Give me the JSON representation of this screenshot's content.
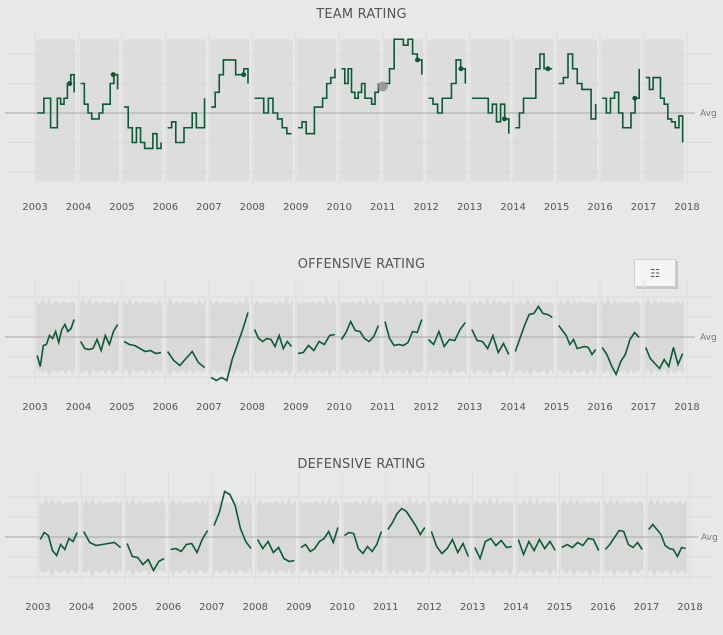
{
  "colors": {
    "line": "#0b5a35",
    "band": "#d9d9d9",
    "spaghetti": "#d4d4d4",
    "grid": "#dcdcdc",
    "avg_line": "#a9a9a9",
    "highlight_dot": "#8a8a8a"
  },
  "view_data_button": {
    "icon": "table-icon",
    "glyph": "☷"
  },
  "chart_data": [
    {
      "type": "line",
      "title": "TEAM RATING",
      "reference_line": "Avg",
      "ylim": [
        -2.5,
        2.6
      ],
      "grid": true,
      "xticks": [
        "2003",
        "2004",
        "2005",
        "2006",
        "2007",
        "2008",
        "2009",
        "2010",
        "2011",
        "2012",
        "2013",
        "2014",
        "2015",
        "2016",
        "2017",
        "2018"
      ],
      "background": "other teams as gray lines",
      "seasons": [
        {
          "year": 2003,
          "values": [
            0,
            0,
            0.5,
            0.5,
            -0.5,
            -0.5,
            0.5,
            0.3,
            0.5,
            1,
            1.3,
            0.7
          ]
        },
        {
          "year": 2004,
          "values": [
            1,
            0.3,
            0,
            -0.2,
            -0.2,
            0,
            0.3,
            0.3,
            1,
            1.3,
            0.8
          ]
        },
        {
          "year": 2005,
          "values": [
            0.2,
            -0.5,
            -1,
            -0.5,
            -1,
            -1.2,
            -1.2,
            -0.7,
            -1.2,
            -1
          ]
        },
        {
          "year": 2006,
          "values": [
            -0.5,
            -0.3,
            -1,
            -1,
            -0.5,
            -0.5,
            0,
            -0.5,
            -0.5,
            0.5
          ]
        },
        {
          "year": 2007,
          "values": [
            0.2,
            0.7,
            1.3,
            1.8,
            1.8,
            1.8,
            1.3,
            1.3,
            1.5,
            1
          ]
        },
        {
          "year": 2008,
          "values": [
            0.5,
            0.5,
            0,
            0.5,
            0,
            -0.2,
            -0.5,
            -0.7,
            -0.7
          ]
        },
        {
          "year": 2009,
          "values": [
            -0.5,
            -0.3,
            -0.7,
            -0.7,
            0.2,
            0.2,
            0.5,
            1,
            1.2,
            1.5
          ]
        },
        {
          "year": 2010,
          "values": [
            1.5,
            1,
            1.5,
            0.7,
            0.5,
            0.7,
            1,
            0.5,
            0.5,
            0.3,
            0.7,
            1
          ]
        },
        {
          "year": 2011,
          "values": [
            1,
            1.5,
            2.5,
            2.5,
            2.3,
            2.5,
            2,
            1.8,
            1.3
          ]
        },
        {
          "year": 2012,
          "values": [
            0.5,
            0.3,
            0,
            0.5,
            0.5,
            1,
            1.8,
            1.5,
            1
          ]
        },
        {
          "year": 2013,
          "values": [
            0.5,
            0.5,
            0.5,
            0.5,
            0,
            0.3,
            -0.3,
            0.3,
            -0.2,
            -0.7
          ]
        },
        {
          "year": 2014,
          "values": [
            -0.5,
            0,
            0.5,
            0.5,
            0.5,
            1.5,
            2,
            1.5,
            1.5,
            1.5
          ]
        },
        {
          "year": 2015,
          "values": [
            1,
            1.2,
            2,
            1.5,
            1,
            0.8,
            0.8,
            -0.2,
            0.3
          ]
        },
        {
          "year": 2016,
          "values": [
            0.5,
            0,
            0.5,
            0.7,
            0,
            -0.5,
            -0.5,
            0,
            0.5,
            1.5
          ]
        },
        {
          "year": 2017,
          "values": [
            1.2,
            0.8,
            1.2,
            1.2,
            0.5,
            0.3,
            -0.2,
            -0.3,
            -0.5,
            -0.1,
            -1
          ]
        }
      ],
      "markers": [
        [
          2003.8,
          1
        ],
        [
          2004.8,
          1.3
        ],
        [
          2007.8,
          1.3
        ],
        [
          2011.8,
          1.8
        ],
        [
          2012.8,
          1.5
        ],
        [
          2013.8,
          -0.2
        ],
        [
          2014.8,
          1.5
        ],
        [
          2016.8,
          0.5
        ]
      ],
      "highlight": [
        2011.0,
        0.9
      ]
    },
    {
      "type": "line",
      "title": "OFFENSIVE RATING",
      "reference_line": "Avg",
      "ylim": [
        -2.3,
        2.3
      ],
      "grid": true,
      "xticks": [
        "2003",
        "2004",
        "2005",
        "2006",
        "2007",
        "2008",
        "2009",
        "2010",
        "2011",
        "2012",
        "2013",
        "2014",
        "2015",
        "2016",
        "2017",
        "2018"
      ],
      "band": [
        -2,
        2
      ],
      "seasons": [
        {
          "year": 2003,
          "values": [
            -1,
            -1.4,
            -0.5,
            -0.3,
            0,
            0,
            0.2,
            -0.2,
            0.3,
            0.7,
            0.2,
            0.5,
            0.8
          ]
        },
        {
          "year": 2004,
          "values": [
            -0.3,
            -0.5,
            -0.7,
            -0.5,
            -0.2,
            -0.6,
            0,
            -0.3,
            0.2,
            0.7
          ]
        },
        {
          "year": 2005,
          "values": [
            -0.3,
            -0.3,
            -0.5,
            -0.5,
            -0.8,
            -0.6,
            -0.9,
            -0.7
          ]
        },
        {
          "year": 2006,
          "values": [
            -0.8,
            -1.1,
            -1.5,
            -1,
            -0.8,
            -1.2,
            -1.6
          ]
        },
        {
          "year": 2007,
          "values": [
            -2.1,
            -2.1,
            -2.1,
            -2.1,
            -1.2,
            -0.3,
            0.3,
            1.3
          ]
        },
        {
          "year": 2008,
          "values": [
            0.3,
            0,
            -0.3,
            0,
            -0.2,
            -0.4,
            0,
            -0.5,
            -0.3,
            -0.4
          ]
        },
        {
          "year": 2009,
          "values": [
            -0.9,
            -0.7,
            -0.5,
            -0.6,
            -0.3,
            -0.3,
            0,
            0.2
          ]
        },
        {
          "year": 2010,
          "values": [
            -0.2,
            0.3,
            0.7,
            0.4,
            0.2,
            0,
            -0.3,
            0.1,
            0.5
          ]
        },
        {
          "year": 2011,
          "values": [
            0.7,
            0,
            -0.5,
            -0.3,
            -0.5,
            -0.2,
            0.2,
            0.3,
            0.8
          ]
        },
        {
          "year": 2012,
          "values": [
            -0.2,
            -0.3,
            0.2,
            -0.4,
            -0.2,
            -0.1,
            0.3,
            0.8
          ]
        },
        {
          "year": 2013,
          "values": [
            0.3,
            -0.1,
            -0.3,
            -0.5,
            0,
            -0.7,
            -0.4,
            -0.8
          ]
        },
        {
          "year": 2014,
          "values": [
            -0.8,
            0,
            0.5,
            1.2,
            1.1,
            1.6,
            1.1,
            1.2,
            0.9
          ]
        },
        {
          "year": 2015,
          "values": [
            0.5,
            0.4,
            0,
            -0.3,
            -0.2,
            -0.5,
            -0.6,
            -0.4,
            -0.6,
            -0.8,
            -0.7
          ]
        },
        {
          "year": 2016,
          "values": [
            -0.6,
            -0.8,
            -1.5,
            -1.8,
            -1.3,
            -0.8,
            -0.2,
            0.3,
            -0.1
          ]
        },
        {
          "year": 2017,
          "values": [
            -0.6,
            -1,
            -1.4,
            -1.5,
            -1.2,
            -1.4,
            -0.6,
            -1.3,
            -0.9
          ]
        }
      ]
    },
    {
      "type": "line",
      "title": "DEFENSIVE RATING",
      "reference_line": "Avg",
      "ylim": [
        -2.3,
        2.3
      ],
      "grid": true,
      "xticks": [
        "2003",
        "2004",
        "2005",
        "2006",
        "2007",
        "2008",
        "2009",
        "2010",
        "2011",
        "2012",
        "2013",
        "2014",
        "2015",
        "2016",
        "2017",
        "2018"
      ],
      "band": [
        -2,
        2
      ],
      "seasons": [
        {
          "year": 2003,
          "values": [
            -0.2,
            0.3,
            0,
            -0.6,
            -1,
            -0.3,
            -0.7,
            0,
            -0.3,
            0.3
          ]
        },
        {
          "year": 2004,
          "values": [
            0.2,
            -0.2,
            -0.5,
            -0.3,
            -0.4,
            -0.2,
            -0.6
          ]
        },
        {
          "year": 2005,
          "values": [
            -0.4,
            -0.9,
            -1.1,
            -1.3,
            -1.2,
            -1.6,
            -1.3,
            -1
          ]
        },
        {
          "year": 2006,
          "values": [
            -0.7,
            -0.5,
            -0.8,
            -0.3,
            -0.4,
            -0.7,
            -0.2,
            0.4
          ]
        },
        {
          "year": 2007,
          "values": [
            0.5,
            1.3,
            2.2,
            2.2,
            1.5,
            0.5,
            -0.3,
            -0.5
          ]
        },
        {
          "year": 2008,
          "values": [
            -0.2,
            -0.5,
            -0.3,
            -0.7,
            -0.6,
            -1,
            -1.3,
            -1.1
          ]
        },
        {
          "year": 2009,
          "values": [
            -0.6,
            -0.3,
            -0.8,
            -0.5,
            -0.3,
            0,
            0.2,
            -0.2,
            0.4
          ]
        },
        {
          "year": 2010,
          "values": [
            0,
            0.3,
            0.1,
            -0.5,
            -0.9,
            -0.4,
            -0.8,
            -0.3,
            0.2
          ]
        },
        {
          "year": 2011,
          "values": [
            0.3,
            0.8,
            1.1,
            1.5,
            1.2,
            1.0,
            0.5,
            0.2,
            0.4
          ]
        },
        {
          "year": 2012,
          "values": [
            0.2,
            -0.4,
            -0.9,
            -0.5,
            -0.2,
            -0.7,
            -0.4,
            -0.9
          ]
        },
        {
          "year": 2013,
          "values": [
            -0.6,
            -1,
            -0.3,
            0,
            -0.5,
            -0.1,
            -0.6,
            -0.4
          ]
        },
        {
          "year": 2014,
          "values": [
            -0.2,
            -0.8,
            -0.3,
            -0.6,
            -0.2,
            -0.5,
            -0.3,
            -0.6
          ]
        },
        {
          "year": 2015,
          "values": [
            -0.6,
            -0.3,
            -0.6,
            -0.2,
            -0.5,
            0,
            -0.2,
            -0.6
          ]
        },
        {
          "year": 2016,
          "values": [
            -0.7,
            -0.3,
            -0.1,
            0.4,
            0.2,
            -0.3,
            -0.6,
            -0.2,
            -0.7
          ]
        },
        {
          "year": 2017,
          "values": [
            0.3,
            0.7,
            0.3,
            0.2,
            -0.5,
            -0.5,
            -0.7,
            -0.9,
            -0.6,
            -0.5
          ]
        }
      ]
    }
  ]
}
